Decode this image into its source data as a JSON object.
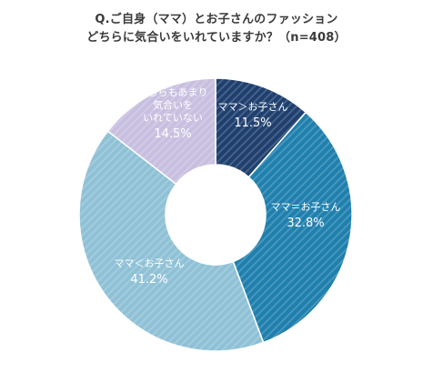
{
  "chart_data": {
    "type": "pie",
    "title": "Q.ご自身（ママ）とお子さんのファッション",
    "subtitle": "どちらに気合いをいれていますか？（n=408）",
    "slices": [
      {
        "label": "ママ＞お子さん",
        "value": 11.5,
        "value_label": "11.5%",
        "color": "#1f3f6e"
      },
      {
        "label": "ママ＝お子さん",
        "value": 32.8,
        "value_label": "32.8%",
        "color": "#1f7fad"
      },
      {
        "label": "ママ＜お子さん",
        "value": 41.2,
        "value_label": "41.2%",
        "color": "#8fc1d6"
      },
      {
        "label": "どちらもあまり気合いをいれていない",
        "value": 14.5,
        "value_label": "14.5%",
        "color": "#c8bfe0"
      }
    ],
    "slice_label_lines": [
      [
        "ママ＞お子さん"
      ],
      [
        "ママ＝お子さん"
      ],
      [
        "ママ＜お子さん"
      ],
      [
        "どちらもあまり",
        "気合いを",
        "いれていない"
      ]
    ]
  }
}
